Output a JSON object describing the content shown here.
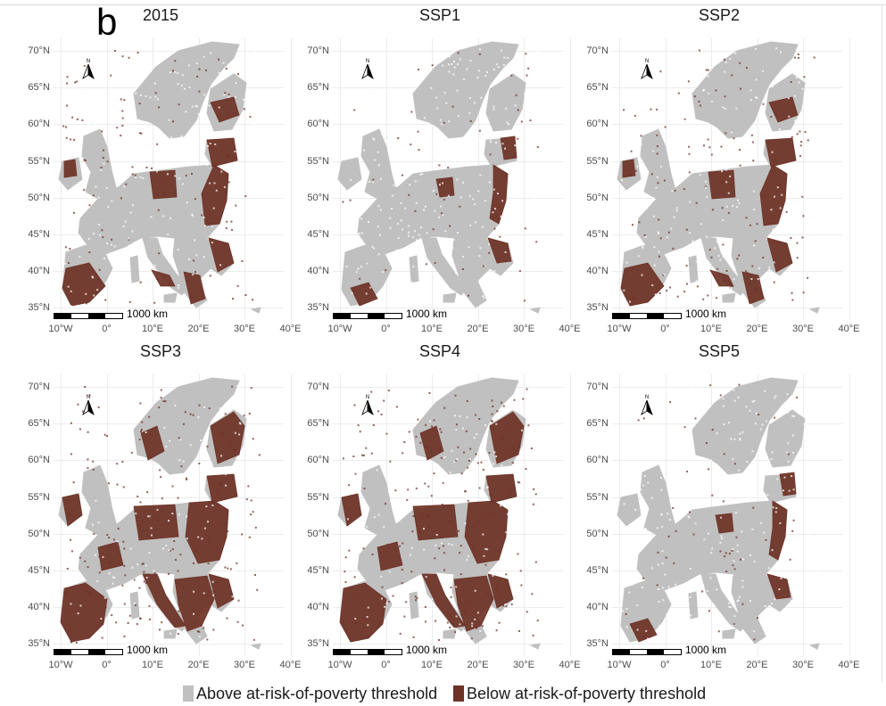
{
  "panel_letter": "b",
  "colors": {
    "above": "#c0c0c0",
    "below": "#6e3226",
    "grid": "#ececec"
  },
  "latitude_labels": [
    "70°N",
    "65°N",
    "60°N",
    "55°N",
    "50°N",
    "45°N",
    "40°N",
    "35°N"
  ],
  "longitude_labels": [
    "10°W",
    "0°",
    "10°E",
    "20°E",
    "30°E",
    "40°E"
  ],
  "scale_label": "1000 km",
  "north_label": "N",
  "panels": [
    {
      "title": "2015",
      "below_share": "medium"
    },
    {
      "title": "SSP1",
      "below_share": "low"
    },
    {
      "title": "SSP2",
      "below_share": "medium"
    },
    {
      "title": "SSP3",
      "below_share": "high"
    },
    {
      "title": "SSP4",
      "below_share": "high"
    },
    {
      "title": "SSP5",
      "below_share": "low"
    }
  ],
  "legend": {
    "above_label": "Above at-risk-of-poverty threshold",
    "below_label": "Below at-risk-of-poverty threshold"
  }
}
